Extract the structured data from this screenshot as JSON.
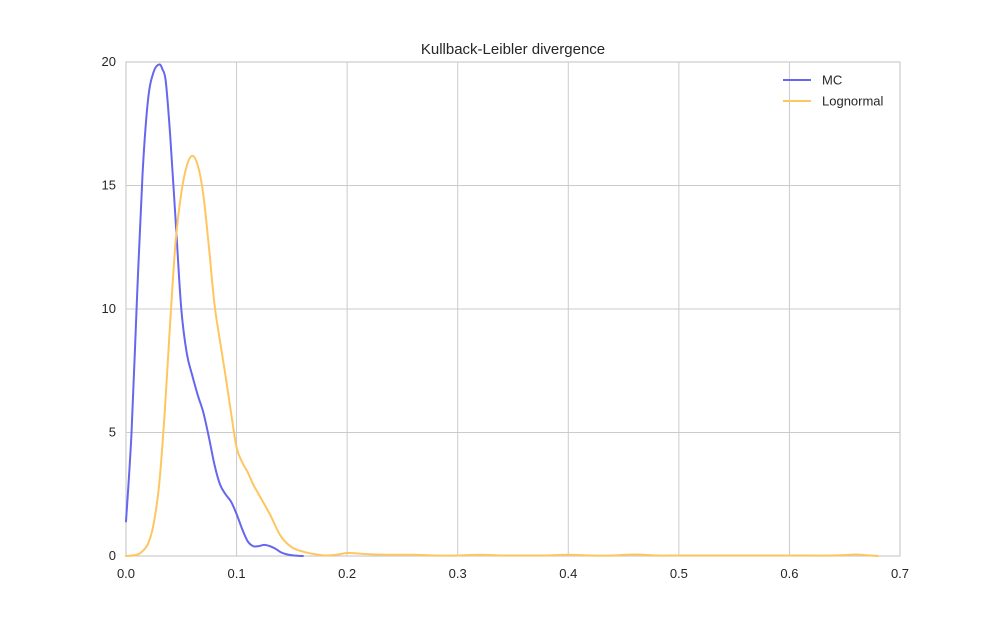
{
  "chart_data": {
    "type": "line",
    "title": "Kullback-Leibler divergence",
    "xlabel": "",
    "ylabel": "",
    "xlim": [
      0.0,
      0.7
    ],
    "ylim": [
      0,
      20
    ],
    "xticks": [
      "0.0",
      "0.1",
      "0.2",
      "0.3",
      "0.4",
      "0.5",
      "0.6",
      "0.7"
    ],
    "yticks": [
      "0",
      "5",
      "10",
      "15",
      "20"
    ],
    "grid": true,
    "legend_position": "top-right",
    "series": [
      {
        "name": "MC",
        "color": "#6666ee",
        "x": [
          0.0,
          0.005,
          0.01,
          0.015,
          0.02,
          0.025,
          0.03,
          0.033,
          0.036,
          0.04,
          0.045,
          0.05,
          0.055,
          0.06,
          0.065,
          0.07,
          0.075,
          0.08,
          0.085,
          0.09,
          0.095,
          0.1,
          0.105,
          0.11,
          0.115,
          0.12,
          0.125,
          0.13,
          0.135,
          0.14,
          0.145,
          0.15,
          0.155,
          0.16
        ],
        "y": [
          1.4,
          5.0,
          10.5,
          15.5,
          18.5,
          19.6,
          19.9,
          19.7,
          19.2,
          17.0,
          13.5,
          10.0,
          8.2,
          7.3,
          6.5,
          5.8,
          4.8,
          3.7,
          2.9,
          2.5,
          2.2,
          1.7,
          1.1,
          0.6,
          0.4,
          0.4,
          0.45,
          0.4,
          0.3,
          0.15,
          0.07,
          0.03,
          0.01,
          0.0
        ]
      },
      {
        "name": "Lognormal",
        "color": "#ffc660",
        "x": [
          0.0,
          0.01,
          0.015,
          0.02,
          0.025,
          0.03,
          0.035,
          0.04,
          0.045,
          0.05,
          0.055,
          0.06,
          0.065,
          0.07,
          0.075,
          0.08,
          0.085,
          0.09,
          0.095,
          0.1,
          0.105,
          0.11,
          0.115,
          0.12,
          0.13,
          0.14,
          0.15,
          0.16,
          0.17,
          0.18,
          0.19,
          0.2,
          0.21,
          0.22,
          0.24,
          0.26,
          0.28,
          0.3,
          0.32,
          0.34,
          0.36,
          0.38,
          0.4,
          0.42,
          0.44,
          0.46,
          0.48,
          0.5,
          0.55,
          0.6,
          0.64,
          0.66,
          0.67,
          0.68
        ],
        "y": [
          0.0,
          0.05,
          0.2,
          0.5,
          1.3,
          2.9,
          5.8,
          9.5,
          12.8,
          14.7,
          15.8,
          16.2,
          15.8,
          14.6,
          12.5,
          10.2,
          8.7,
          7.3,
          5.8,
          4.4,
          3.8,
          3.4,
          2.9,
          2.5,
          1.7,
          0.8,
          0.35,
          0.18,
          0.08,
          0.02,
          0.05,
          0.12,
          0.1,
          0.07,
          0.05,
          0.05,
          0.02,
          0.02,
          0.05,
          0.02,
          0.02,
          0.02,
          0.05,
          0.02,
          0.02,
          0.06,
          0.02,
          0.02,
          0.02,
          0.02,
          0.02,
          0.06,
          0.03,
          0.0
        ]
      }
    ]
  }
}
